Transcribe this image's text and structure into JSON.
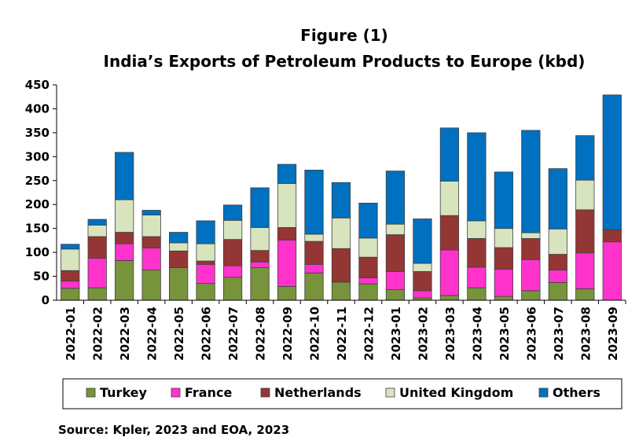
{
  "chart_data": {
    "type": "bar",
    "stacked": true,
    "title": "Figure (1)",
    "subtitle": "India’s Exports of Petroleum Products to Europe (kbd)",
    "source": "Source: Kpler, 2023 and EOA, 2023",
    "ylim": [
      0,
      450
    ],
    "yticks": [
      0,
      50,
      100,
      150,
      200,
      250,
      300,
      350,
      400,
      450
    ],
    "grid": false,
    "legend_position": "bottom",
    "categories": [
      "2022-01",
      "2022-02",
      "2022-03",
      "2022-04",
      "2022-05",
      "2022-06",
      "2022-07",
      "2022-08",
      "2022-09",
      "2022-10",
      "2022-11",
      "2022-12",
      "2023-01",
      "2023-02",
      "2023-03",
      "2023-04",
      "2023-05",
      "2023-06",
      "2023-07",
      "2023-08",
      "2023-09"
    ],
    "series": [
      {
        "name": "Turkey",
        "color": "#77933C",
        "values": [
          25,
          26,
          83,
          63,
          68,
          35,
          48,
          68,
          29,
          57,
          38,
          34,
          22,
          5,
          10,
          26,
          8,
          20,
          37,
          24,
          0
        ]
      },
      {
        "name": "France",
        "color": "#FF33CC",
        "values": [
          15,
          62,
          35,
          46,
          0,
          40,
          24,
          12,
          97,
          18,
          0,
          13,
          38,
          15,
          95,
          43,
          57,
          65,
          26,
          75,
          122
        ]
      },
      {
        "name": "Netherlands",
        "color": "#943634",
        "values": [
          22,
          45,
          24,
          24,
          35,
          7,
          55,
          24,
          26,
          48,
          70,
          43,
          77,
          40,
          72,
          60,
          45,
          44,
          33,
          90,
          25
        ]
      },
      {
        "name": "United Kingdom",
        "color": "#D7E4BD",
        "values": [
          45,
          24,
          68,
          45,
          17,
          36,
          40,
          48,
          92,
          15,
          64,
          40,
          22,
          17,
          72,
          37,
          40,
          12,
          53,
          62,
          0
        ]
      },
      {
        "name": "Others",
        "color": "#0070C0",
        "values": [
          10,
          12,
          99,
          10,
          22,
          48,
          32,
          83,
          40,
          134,
          74,
          73,
          111,
          93,
          111,
          184,
          118,
          214,
          126,
          93,
          282
        ]
      }
    ]
  }
}
